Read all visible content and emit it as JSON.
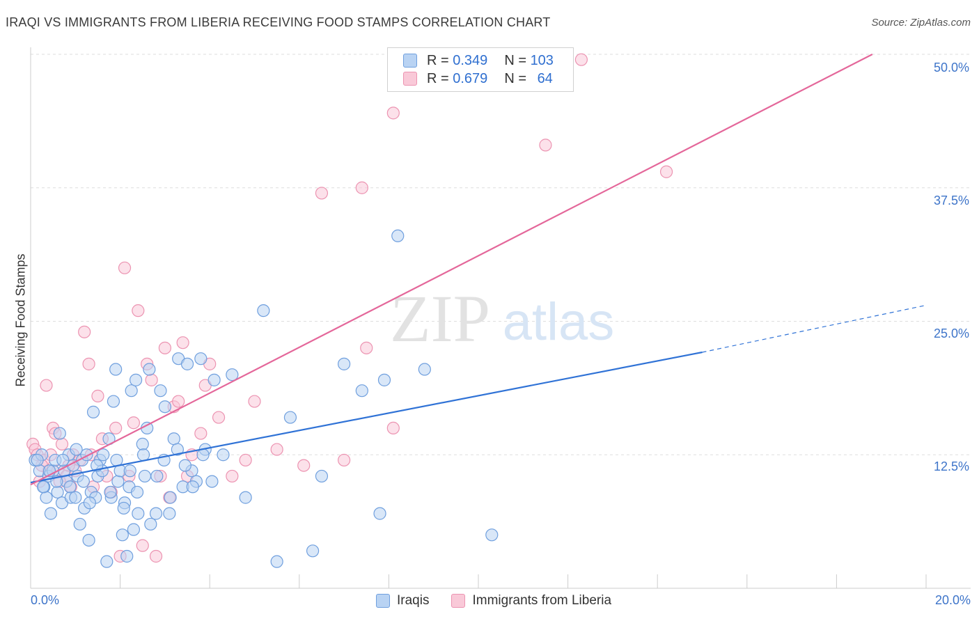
{
  "header": {
    "title": "IRAQI VS IMMIGRANTS FROM LIBERIA RECEIVING FOOD STAMPS CORRELATION CHART",
    "source": "Source: ZipAtlas.com"
  },
  "watermark": {
    "zip": "ZIP",
    "atlas": "atlas"
  },
  "legend_top": {
    "iraqis": {
      "r_label": "R = ",
      "r_value": "0.349",
      "n_label": "N = ",
      "n_value": "103"
    },
    "liberia": {
      "r_label": "R = ",
      "r_value": "0.679",
      "n_label": "N = ",
      "n_value": "64"
    }
  },
  "legend_bottom": {
    "iraqis": "Iraqis",
    "liberia": "Immigrants from Liberia"
  },
  "colors": {
    "iraqis_fill": "#b9d3f3",
    "iraqis_stroke": "#6f9fde",
    "iraqis_line": "#2f72d6",
    "liberia_fill": "#f9c9d8",
    "liberia_stroke": "#ec93b1",
    "liberia_line": "#e4679a",
    "tick": "#3d74c9",
    "grid": "#dddddd"
  },
  "chart_data": {
    "type": "scatter",
    "title": "IRAQI VS IMMIGRANTS FROM LIBERIA RECEIVING FOOD STAMPS CORRELATION CHART",
    "xlabel": "",
    "ylabel": "Receiving Food Stamps",
    "xlim": [
      0,
      20
    ],
    "ylim": [
      0,
      50
    ],
    "x_tick_labels": [
      "0.0%",
      "20.0%"
    ],
    "y_tick_labels": [
      "12.5%",
      "25.0%",
      "37.5%",
      "50.0%"
    ],
    "y_ticks": [
      12.5,
      25,
      37.5,
      50
    ],
    "series": [
      {
        "name": "Iraqis",
        "R": 0.349,
        "N": 103,
        "trend": {
          "x": [
            0,
            15.0
          ],
          "y": [
            9.9,
            22.1
          ],
          "dashed_to": [
            20.0,
            26.5
          ]
        },
        "points": [
          [
            0.1,
            12.0
          ],
          [
            0.2,
            11.0
          ],
          [
            0.25,
            12.5
          ],
          [
            0.3,
            9.5
          ],
          [
            0.35,
            8.5
          ],
          [
            0.4,
            10.5
          ],
          [
            0.45,
            7.0
          ],
          [
            0.5,
            11.0
          ],
          [
            0.55,
            12.0
          ],
          [
            0.6,
            9.0
          ],
          [
            0.65,
            14.5
          ],
          [
            0.7,
            8.0
          ],
          [
            0.75,
            11.0
          ],
          [
            0.8,
            10.0
          ],
          [
            0.85,
            12.5
          ],
          [
            0.9,
            8.5
          ],
          [
            0.95,
            11.5
          ],
          [
            1.0,
            8.5
          ],
          [
            1.05,
            10.5
          ],
          [
            1.1,
            6.0
          ],
          [
            1.15,
            12.0
          ],
          [
            1.2,
            7.5
          ],
          [
            1.25,
            12.5
          ],
          [
            1.3,
            4.5
          ],
          [
            1.35,
            9.0
          ],
          [
            1.4,
            16.5
          ],
          [
            1.45,
            8.5
          ],
          [
            1.5,
            10.5
          ],
          [
            1.55,
            12.0
          ],
          [
            1.6,
            11.0
          ],
          [
            1.7,
            2.5
          ],
          [
            1.75,
            14.0
          ],
          [
            1.8,
            8.5
          ],
          [
            1.85,
            17.5
          ],
          [
            1.9,
            20.5
          ],
          [
            1.95,
            10.0
          ],
          [
            2.0,
            11.0
          ],
          [
            2.05,
            5.0
          ],
          [
            2.1,
            8.0
          ],
          [
            2.15,
            3.0
          ],
          [
            2.2,
            9.5
          ],
          [
            2.25,
            18.5
          ],
          [
            2.3,
            5.5
          ],
          [
            2.35,
            19.5
          ],
          [
            2.4,
            7.0
          ],
          [
            2.5,
            13.5
          ],
          [
            2.55,
            10.5
          ],
          [
            2.6,
            15.0
          ],
          [
            2.65,
            20.5
          ],
          [
            2.8,
            7.0
          ],
          [
            2.9,
            18.5
          ],
          [
            3.0,
            17.0
          ],
          [
            3.1,
            7.0
          ],
          [
            3.2,
            14.0
          ],
          [
            3.3,
            21.5
          ],
          [
            3.4,
            9.5
          ],
          [
            3.5,
            21.0
          ],
          [
            3.6,
            11.0
          ],
          [
            3.7,
            10.0
          ],
          [
            3.8,
            21.5
          ],
          [
            3.9,
            13.0
          ],
          [
            4.1,
            19.5
          ],
          [
            4.3,
            12.5
          ],
          [
            4.5,
            20.0
          ],
          [
            4.8,
            8.5
          ],
          [
            5.2,
            26.0
          ],
          [
            5.5,
            2.5
          ],
          [
            5.8,
            16.0
          ],
          [
            6.3,
            3.5
          ],
          [
            6.5,
            10.5
          ],
          [
            7.0,
            21.0
          ],
          [
            7.4,
            18.5
          ],
          [
            7.8,
            7.0
          ],
          [
            7.9,
            19.5
          ],
          [
            8.2,
            33.0
          ],
          [
            8.8,
            20.5
          ],
          [
            10.3,
            5.0
          ],
          [
            0.15,
            12.0
          ],
          [
            0.28,
            9.5
          ],
          [
            0.42,
            11.0
          ],
          [
            0.58,
            10.0
          ],
          [
            0.72,
            12.0
          ],
          [
            0.88,
            9.5
          ],
          [
            1.02,
            13.0
          ],
          [
            1.18,
            10.0
          ],
          [
            1.32,
            8.0
          ],
          [
            1.48,
            11.5
          ],
          [
            1.62,
            12.5
          ],
          [
            1.78,
            9.0
          ],
          [
            1.92,
            12.0
          ],
          [
            2.08,
            7.5
          ],
          [
            2.22,
            11.0
          ],
          [
            2.38,
            9.0
          ],
          [
            2.52,
            12.5
          ],
          [
            2.68,
            6.0
          ],
          [
            2.82,
            10.5
          ],
          [
            2.98,
            12.0
          ],
          [
            3.12,
            8.5
          ],
          [
            3.28,
            13.0
          ],
          [
            3.45,
            11.5
          ],
          [
            3.62,
            9.5
          ],
          [
            3.85,
            12.5
          ],
          [
            4.05,
            10.0
          ]
        ]
      },
      {
        "name": "Immigrants from Liberia",
        "R": 0.679,
        "N": 64,
        "trend": {
          "x": [
            0,
            18.8
          ],
          "y": [
            9.7,
            50.0
          ]
        },
        "points": [
          [
            0.05,
            13.5
          ],
          [
            0.1,
            13.0
          ],
          [
            0.15,
            12.5
          ],
          [
            0.2,
            10.0
          ],
          [
            0.3,
            12.0
          ],
          [
            0.35,
            19.0
          ],
          [
            0.4,
            11.0
          ],
          [
            0.5,
            15.0
          ],
          [
            0.55,
            14.5
          ],
          [
            0.6,
            11.0
          ],
          [
            0.7,
            13.5
          ],
          [
            0.8,
            10.5
          ],
          [
            0.9,
            9.5
          ],
          [
            0.95,
            12.5
          ],
          [
            1.0,
            11.0
          ],
          [
            1.1,
            12.0
          ],
          [
            1.2,
            24.0
          ],
          [
            1.3,
            21.0
          ],
          [
            1.35,
            12.5
          ],
          [
            1.4,
            9.5
          ],
          [
            1.5,
            18.0
          ],
          [
            1.6,
            14.0
          ],
          [
            1.7,
            10.5
          ],
          [
            1.8,
            9.0
          ],
          [
            1.9,
            15.0
          ],
          [
            2.0,
            3.0
          ],
          [
            2.1,
            30.0
          ],
          [
            2.2,
            10.5
          ],
          [
            2.3,
            15.5
          ],
          [
            2.4,
            26.0
          ],
          [
            2.5,
            4.0
          ],
          [
            2.6,
            21.0
          ],
          [
            2.7,
            19.5
          ],
          [
            2.8,
            3.0
          ],
          [
            2.9,
            10.5
          ],
          [
            3.0,
            22.5
          ],
          [
            3.1,
            8.5
          ],
          [
            3.2,
            17.0
          ],
          [
            3.3,
            17.5
          ],
          [
            3.4,
            23.0
          ],
          [
            3.5,
            10.5
          ],
          [
            3.6,
            12.5
          ],
          [
            3.8,
            14.5
          ],
          [
            3.9,
            19.0
          ],
          [
            4.0,
            21.0
          ],
          [
            4.2,
            16.0
          ],
          [
            4.5,
            10.5
          ],
          [
            4.8,
            12.0
          ],
          [
            5.0,
            17.5
          ],
          [
            5.5,
            13.0
          ],
          [
            6.1,
            11.5
          ],
          [
            6.5,
            37.0
          ],
          [
            7.0,
            12.0
          ],
          [
            7.4,
            37.5
          ],
          [
            7.5,
            22.5
          ],
          [
            8.1,
            15.0
          ],
          [
            8.1,
            44.5
          ],
          [
            11.5,
            41.5
          ],
          [
            14.2,
            39.0
          ],
          [
            12.3,
            49.5
          ],
          [
            0.25,
            11.5
          ],
          [
            0.45,
            12.5
          ],
          [
            0.65,
            10.0
          ],
          [
            0.85,
            11.5
          ]
        ]
      }
    ]
  }
}
